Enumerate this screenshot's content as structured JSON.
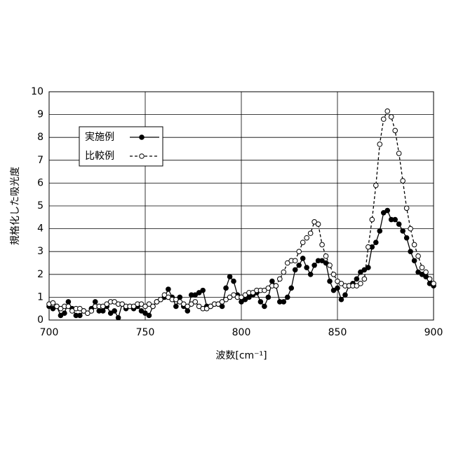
{
  "chart_data": {
    "type": "line",
    "x_label": "波数[cm⁻¹]",
    "y_label": "規格化した吸光度",
    "x": [
      700,
      702,
      704,
      706,
      708,
      710,
      712,
      714,
      716,
      718,
      720,
      722,
      724,
      726,
      728,
      730,
      732,
      734,
      736,
      738,
      740,
      742,
      744,
      746,
      748,
      750,
      752,
      754,
      756,
      758,
      760,
      762,
      764,
      766,
      768,
      770,
      772,
      774,
      776,
      778,
      780,
      782,
      784,
      786,
      788,
      790,
      792,
      794,
      796,
      798,
      800,
      802,
      804,
      806,
      808,
      810,
      812,
      814,
      816,
      818,
      820,
      822,
      824,
      826,
      828,
      830,
      832,
      834,
      836,
      838,
      840,
      842,
      844,
      846,
      848,
      850,
      852,
      854,
      856,
      858,
      860,
      862,
      864,
      866,
      868,
      870,
      872,
      874,
      876,
      878,
      880,
      882,
      884,
      886,
      888,
      890,
      892,
      894,
      896,
      898,
      900
    ],
    "series": [
      {
        "name": "実施例",
        "color": "#000000",
        "marker": "filled",
        "dashed": false,
        "values": [
          0.6,
          0.5,
          0.6,
          0.2,
          0.3,
          0.8,
          0.5,
          0.2,
          0.2,
          0.4,
          0.3,
          0.5,
          0.8,
          0.4,
          0.4,
          0.6,
          0.3,
          0.4,
          0.1,
          0.7,
          0.5,
          0.6,
          0.5,
          0.6,
          0.4,
          0.3,
          0.2,
          0.6,
          0.8,
          0.9,
          1.0,
          1.35,
          1.0,
          0.6,
          1.0,
          0.6,
          0.4,
          1.1,
          1.1,
          1.2,
          1.3,
          0.6,
          0.6,
          0.7,
          0.7,
          0.6,
          1.4,
          1.9,
          1.7,
          1.1,
          0.8,
          0.9,
          1.0,
          1.1,
          1.2,
          0.8,
          0.6,
          1.0,
          1.7,
          1.5,
          0.8,
          0.8,
          1.0,
          1.4,
          2.2,
          2.4,
          2.7,
          2.3,
          2.0,
          2.4,
          2.6,
          2.6,
          2.5,
          1.7,
          1.3,
          1.4,
          0.9,
          1.1,
          1.5,
          1.6,
          1.8,
          2.1,
          2.2,
          2.3,
          3.2,
          3.4,
          3.9,
          4.7,
          4.8,
          4.4,
          4.4,
          4.2,
          3.9,
          3.6,
          3.0,
          2.6,
          2.1,
          2.0,
          1.9,
          1.6,
          1.5
        ]
      },
      {
        "name": "比較例",
        "color": "#000000",
        "marker": "open",
        "dashed": true,
        "values": [
          0.7,
          0.75,
          0.6,
          0.5,
          0.6,
          0.6,
          0.4,
          0.5,
          0.5,
          0.4,
          0.3,
          0.4,
          0.6,
          0.6,
          0.6,
          0.7,
          0.8,
          0.8,
          0.7,
          0.7,
          0.6,
          0.6,
          0.6,
          0.7,
          0.7,
          0.6,
          0.7,
          0.6,
          0.8,
          0.9,
          1.1,
          1.0,
          0.9,
          0.9,
          0.8,
          0.7,
          0.6,
          0.7,
          0.8,
          0.6,
          0.5,
          0.5,
          0.6,
          0.7,
          0.7,
          0.8,
          0.9,
          1.0,
          1.1,
          1.0,
          1.0,
          1.1,
          1.2,
          1.2,
          1.3,
          1.3,
          1.3,
          1.4,
          1.5,
          1.5,
          1.8,
          2.1,
          2.5,
          2.6,
          2.6,
          3.0,
          3.4,
          3.6,
          3.8,
          4.3,
          4.2,
          3.3,
          2.8,
          2.4,
          2.0,
          1.7,
          1.6,
          1.5,
          1.5,
          1.5,
          1.5,
          1.6,
          1.8,
          3.2,
          4.4,
          5.9,
          7.7,
          8.8,
          9.15,
          8.9,
          8.3,
          7.3,
          6.1,
          4.9,
          4.0,
          3.3,
          2.8,
          2.3,
          2.1,
          1.8,
          1.6
        ]
      }
    ],
    "xlim": [
      700,
      900
    ],
    "xticks": [
      700,
      750,
      800,
      850,
      900
    ],
    "ylim": [
      0,
      10
    ],
    "yticks": [
      0,
      1,
      2,
      3,
      4,
      5,
      6,
      7,
      8,
      9,
      10
    ],
    "grid": true,
    "legend": "upper left"
  }
}
